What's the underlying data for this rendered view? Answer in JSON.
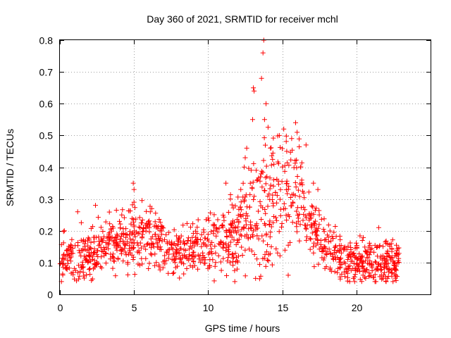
{
  "chart_data": {
    "type": "scatter",
    "title": "Day 360 of 2021, SRMTID for receiver mchl",
    "xlabel": "GPS time / hours",
    "ylabel": "SRMTID / TECUs",
    "xlim": [
      0,
      25
    ],
    "ylim": [
      0,
      0.8
    ],
    "xticks": [
      0,
      5,
      10,
      15,
      20
    ],
    "yticks": [
      0,
      0.1,
      0.2,
      0.3,
      0.4,
      0.5,
      0.6,
      0.7,
      0.8
    ],
    "xtick_labels": [
      "0",
      "5",
      "10",
      "15",
      "20"
    ],
    "ytick_labels": [
      "0",
      "0.1",
      "0.2",
      "0.3",
      "0.4",
      "0.5",
      "0.6",
      "0.7",
      "0.8"
    ],
    "grid": true,
    "marker": "+",
    "color": "#ff0000",
    "series": [
      {
        "name": "SRMTID",
        "x_range": [
          0,
          22.9
        ],
        "envelope": {
          "hours": [
            0,
            1,
            2,
            3,
            4,
            5,
            6,
            7,
            8,
            9,
            10,
            11,
            12,
            12.5,
            13,
            13.5,
            14,
            15,
            16,
            16.5,
            17,
            18,
            19,
            20,
            21,
            22,
            22.9
          ],
          "typical": [
            0.11,
            0.12,
            0.13,
            0.16,
            0.17,
            0.18,
            0.17,
            0.14,
            0.13,
            0.14,
            0.15,
            0.17,
            0.2,
            0.24,
            0.26,
            0.27,
            0.3,
            0.32,
            0.3,
            0.28,
            0.2,
            0.15,
            0.11,
            0.1,
            0.1,
            0.11,
            0.1
          ],
          "spread": [
            0.05,
            0.06,
            0.07,
            0.07,
            0.07,
            0.08,
            0.08,
            0.06,
            0.05,
            0.06,
            0.07,
            0.08,
            0.1,
            0.12,
            0.15,
            0.18,
            0.17,
            0.15,
            0.12,
            0.1,
            0.08,
            0.06,
            0.05,
            0.05,
            0.05,
            0.05,
            0.05
          ]
        },
        "notable_points": [
          {
            "x": 0.3,
            "y": 0.2
          },
          {
            "x": 1.2,
            "y": 0.26
          },
          {
            "x": 2.4,
            "y": 0.28
          },
          {
            "x": 4.95,
            "y": 0.35
          },
          {
            "x": 5.0,
            "y": 0.33
          },
          {
            "x": 5.0,
            "y": 0.29
          },
          {
            "x": 6.2,
            "y": 0.27
          },
          {
            "x": 6.1,
            "y": 0.26
          },
          {
            "x": 11.2,
            "y": 0.35
          },
          {
            "x": 11.5,
            "y": 0.3
          },
          {
            "x": 12.2,
            "y": 0.33
          },
          {
            "x": 12.5,
            "y": 0.43
          },
          {
            "x": 12.6,
            "y": 0.46
          },
          {
            "x": 13.0,
            "y": 0.55
          },
          {
            "x": 13.05,
            "y": 0.65
          },
          {
            "x": 13.1,
            "y": 0.64
          },
          {
            "x": 13.6,
            "y": 0.68
          },
          {
            "x": 13.7,
            "y": 0.76
          },
          {
            "x": 13.75,
            "y": 0.8
          },
          {
            "x": 13.8,
            "y": 0.55
          },
          {
            "x": 13.9,
            "y": 0.6
          },
          {
            "x": 14.2,
            "y": 0.46
          },
          {
            "x": 14.8,
            "y": 0.5
          },
          {
            "x": 15.1,
            "y": 0.52
          },
          {
            "x": 15.3,
            "y": 0.45
          },
          {
            "x": 15.9,
            "y": 0.54
          },
          {
            "x": 16.0,
            "y": 0.51
          },
          {
            "x": 16.6,
            "y": 0.47
          },
          {
            "x": 17.1,
            "y": 0.35
          },
          {
            "x": 17.4,
            "y": 0.33
          },
          {
            "x": 21.5,
            "y": 0.21
          },
          {
            "x": 22.0,
            "y": 0.16
          },
          {
            "x": 13.2,
            "y": 0.05
          },
          {
            "x": 15.4,
            "y": 0.06
          },
          {
            "x": 19.8,
            "y": 0.05
          },
          {
            "x": 22.0,
            "y": 0.04
          }
        ]
      }
    ]
  }
}
